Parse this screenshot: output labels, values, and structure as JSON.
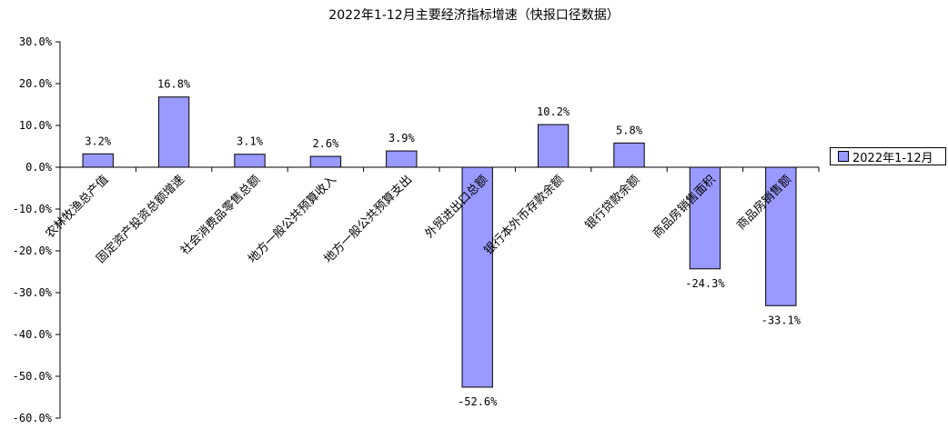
{
  "chart_data": {
    "type": "bar",
    "title": "2022年1-12月主要经济指标增速（快报口径数据）",
    "categories": [
      "农林牧渔总产值",
      "固定资产投资总额增速",
      "社会消费品零售总额",
      "地方一般公共预算收入",
      "地方一般公共预算支出",
      "外贸进出口总额",
      "银行本外币存款余额",
      "银行贷款余额",
      "商品房销售面积",
      "商品房销售额"
    ],
    "series": [
      {
        "name": "2022年1-12月",
        "values": [
          3.2,
          16.8,
          3.1,
          2.6,
          3.9,
          -52.6,
          10.2,
          5.8,
          -24.3,
          -33.1
        ]
      }
    ],
    "data_labels": [
      "3.2%",
      "16.8%",
      "3.1%",
      "2.6%",
      "3.9%",
      "-52.6%",
      "10.2%",
      "5.8%",
      "-24.3%",
      "-33.1%"
    ],
    "ylim": [
      -60,
      30
    ],
    "yticks": [
      30,
      20,
      10,
      0,
      -10,
      -20,
      -30,
      -40,
      -50,
      -60
    ],
    "ytick_labels": [
      "30.0%",
      "20.0%",
      "10.0%",
      "0.0%",
      "-10.0%",
      "-20.0%",
      "-30.0%",
      "-40.0%",
      "-50.0%",
      "-60.0%"
    ],
    "grid": false,
    "legend_position": "right",
    "bar_color": "#9999ff"
  }
}
